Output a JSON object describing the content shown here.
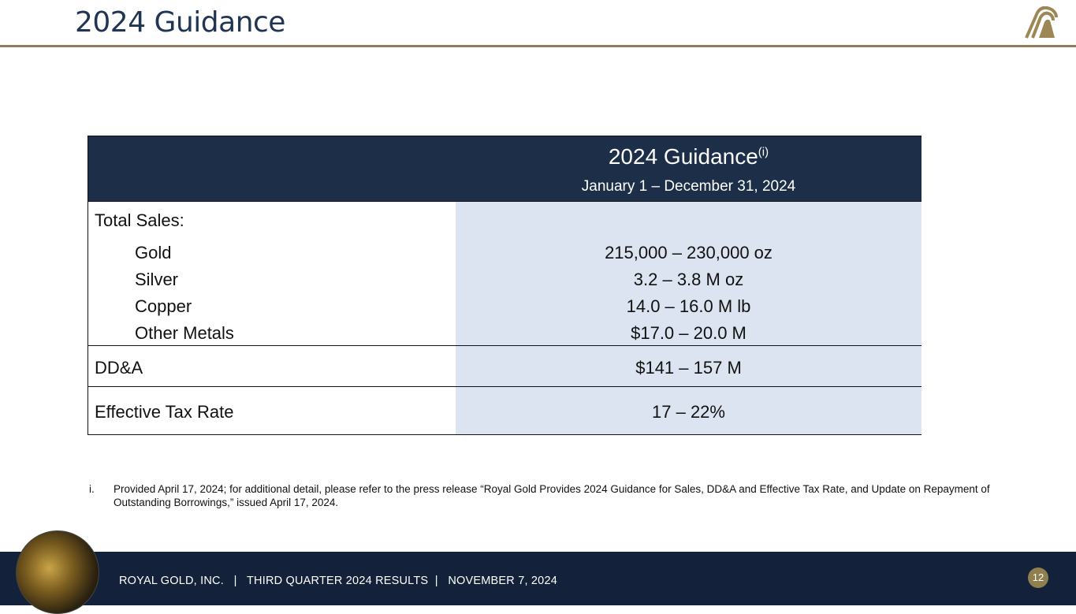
{
  "header": {
    "title": "2024 Guidance"
  },
  "table": {
    "heading": "2024 Guidance",
    "heading_sup": "(i)",
    "period": "January 1 – December 31, 2024",
    "section_label": "Total Sales:",
    "rows": [
      {
        "label": "Gold",
        "value": "215,000 – 230,000 oz"
      },
      {
        "label": "Silver",
        "value": "3.2 – 3.8 M oz"
      },
      {
        "label": "Copper",
        "value": "14.0 – 16.0 M lb"
      },
      {
        "label": "Other Metals",
        "value": "$17.0 – 20.0 M"
      },
      {
        "label": "DD&A",
        "value": "$141 – 157 M"
      },
      {
        "label": "Effective Tax Rate",
        "value": "17 – 22%"
      }
    ]
  },
  "footnote": {
    "marker": "i.",
    "text": "Provided April 17, 2024; for additional detail, please refer to the press release “Royal Gold Provides 2024 Guidance for Sales, DD&A and Effective Tax Rate, and Update on Repayment of Outstanding Borrowings,” issued April 17, 2024."
  },
  "footer": {
    "text": "ROYAL GOLD, INC.   |   THIRD QUARTER 2024 RESULTS  |   NOVEMBER 7, 2024",
    "page_number": "12"
  },
  "colors": {
    "navy": "#1c2e48",
    "gold": "#8a7f5c",
    "value_bg": "#dbe4f0"
  }
}
